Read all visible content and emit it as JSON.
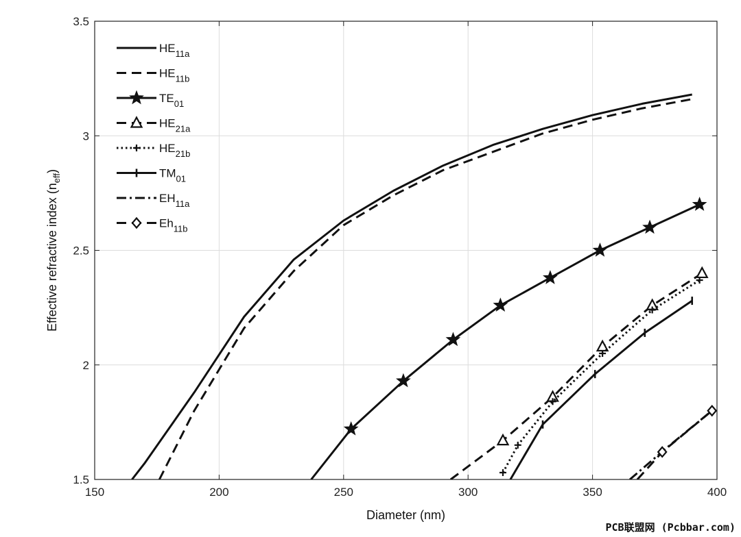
{
  "chart_data": {
    "type": "line",
    "xlabel": "Diameter (nm)",
    "ylabel_main": "Effective refractive index (n",
    "ylabel_sub": "eff",
    "ylabel_close": ")",
    "xlim": [
      150,
      400
    ],
    "ylim": [
      1.5,
      3.5
    ],
    "xticks": [
      150,
      200,
      250,
      300,
      350,
      400
    ],
    "yticks": [
      1.5,
      2,
      2.5,
      3,
      3.5
    ],
    "xtick_labels": [
      "150",
      "200",
      "250",
      "300",
      "350",
      "400"
    ],
    "ytick_labels": [
      "1.5",
      "2",
      "2.5",
      "3",
      "3.5"
    ],
    "grid": true,
    "legend_position": "top-left",
    "series": [
      {
        "name": "HE",
        "sub": "11a",
        "line": "solid",
        "marker": "none",
        "x": [
          165,
          170,
          190,
          210,
          230,
          250,
          270,
          290,
          310,
          330,
          350,
          370,
          390
        ],
        "y": [
          1.5,
          1.57,
          1.88,
          2.21,
          2.46,
          2.63,
          2.76,
          2.87,
          2.96,
          3.03,
          3.09,
          3.14,
          3.18
        ]
      },
      {
        "name": "HE",
        "sub": "11b",
        "line": "dashed",
        "marker": "none",
        "x": [
          176,
          190,
          210,
          230,
          250,
          270,
          290,
          310,
          330,
          350,
          370,
          390
        ],
        "y": [
          1.5,
          1.8,
          2.16,
          2.41,
          2.61,
          2.74,
          2.85,
          2.93,
          3.01,
          3.07,
          3.12,
          3.16
        ]
      },
      {
        "name": "TE",
        "sub": "01",
        "line": "solid",
        "marker": "star",
        "x": [
          237,
          253,
          274,
          294,
          313,
          333,
          353,
          373,
          393
        ],
        "y": [
          1.5,
          1.72,
          1.93,
          2.11,
          2.26,
          2.38,
          2.5,
          2.6,
          2.7
        ]
      },
      {
        "name": "HE",
        "sub": "21a",
        "line": "dashed",
        "marker": "triangle",
        "x": [
          293,
          314,
          334,
          354,
          374,
          394
        ],
        "y": [
          1.5,
          1.67,
          1.86,
          2.08,
          2.26,
          2.4
        ]
      },
      {
        "name": "HE",
        "sub": "21b",
        "line": "dotted",
        "marker": "plus",
        "x": [
          314,
          320,
          334,
          354,
          374,
          393
        ],
        "y": [
          1.53,
          1.65,
          1.84,
          2.05,
          2.24,
          2.37
        ]
      },
      {
        "name": "TM",
        "sub": "01",
        "line": "solid",
        "marker": "vtick",
        "x": [
          317,
          330,
          351,
          371,
          390
        ],
        "y": [
          1.5,
          1.74,
          1.96,
          2.14,
          2.28
        ]
      },
      {
        "name": "EH",
        "sub": "11a",
        "line": "dashdot",
        "marker": "none",
        "x": [
          365,
          380,
          398
        ],
        "y": [
          1.5,
          1.64,
          1.8
        ]
      },
      {
        "name": "Eh",
        "sub": "11b",
        "line": "dashed",
        "marker": "diamond",
        "x": [
          368,
          378,
          398
        ],
        "y": [
          1.5,
          1.62,
          1.8
        ]
      }
    ]
  },
  "watermark": "PCB联盟网 (Pcbbar.com)"
}
